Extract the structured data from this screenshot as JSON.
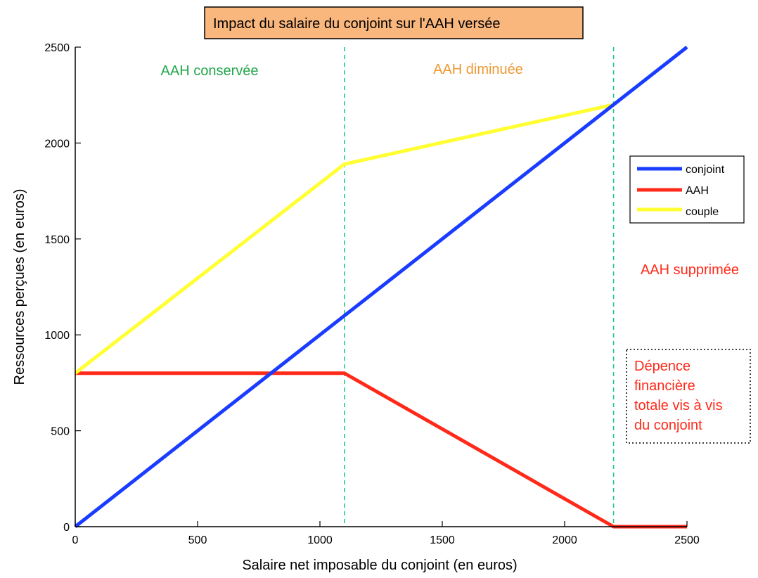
{
  "colors": {
    "conjoint": "#1a3cff",
    "aah": "#ff2a1a",
    "couple": "#ffff33",
    "green": "#1fa64a",
    "orange": "#ee9933",
    "red_text": "#ff2a1a",
    "title_bg": "#f9b77e",
    "threshold_line": "#22cc88"
  },
  "chart_data": {
    "type": "line",
    "title": "Impact du salaire du conjoint sur l'AAH versée",
    "xlabel": "Salaire net imposable du conjoint (en euros)",
    "ylabel": "Ressources perçues (en euros)",
    "xlim": [
      0,
      2500
    ],
    "ylim": [
      0,
      2500
    ],
    "xticks": [
      0,
      500,
      1000,
      1500,
      2000,
      2500
    ],
    "yticks": [
      0,
      500,
      1000,
      1500,
      2000,
      2500
    ],
    "grid": false,
    "legend_position": "right",
    "series": [
      {
        "name": "conjoint",
        "color_key": "conjoint",
        "x": [
          0,
          2500
        ],
        "y": [
          0,
          2500
        ]
      },
      {
        "name": "AAH",
        "color_key": "aah",
        "x": [
          0,
          1100,
          2200,
          2500
        ],
        "y": [
          800,
          800,
          0,
          0
        ]
      },
      {
        "name": "couple",
        "color_key": "couple",
        "x": [
          0,
          1100,
          2200
        ],
        "y": [
          800,
          1890,
          2200
        ]
      }
    ],
    "thresholds": [
      1100,
      2200
    ],
    "annotations": [
      {
        "text": "AAH conservée",
        "color_key": "green"
      },
      {
        "text": "AAH diminuée",
        "color_key": "orange"
      },
      {
        "text": "AAH supprimée",
        "color_key": "red_text"
      }
    ],
    "note_box": {
      "lines": [
        "Dépence",
        "financière",
        "totale vis à vis",
        "du conjoint"
      ],
      "color_key": "red_text"
    }
  }
}
